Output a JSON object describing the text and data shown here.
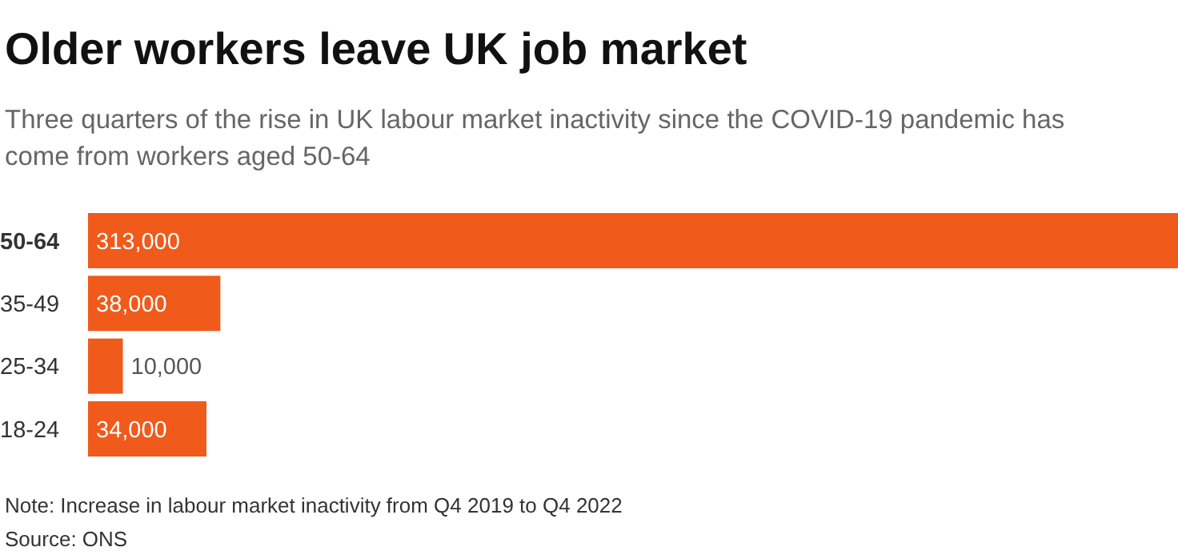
{
  "chart_data": {
    "type": "bar",
    "orientation": "horizontal",
    "title": "Older workers leave UK job market",
    "subtitle": "Three quarters of the rise in UK labour market inactivity since the COVID-19 pandemic has come from workers aged 50-64",
    "categories": [
      "50-64",
      "35-49",
      "25-34",
      "18-24"
    ],
    "values": [
      313000,
      38000,
      10000,
      34000
    ],
    "value_labels": [
      "313,000",
      "38,000",
      "10,000",
      "34,000"
    ],
    "color": "#f05a1a",
    "annotations": [
      "Note: Increase in labour market inactivity from Q4 2019 to Q4 2022",
      "Source: ONS"
    ]
  }
}
